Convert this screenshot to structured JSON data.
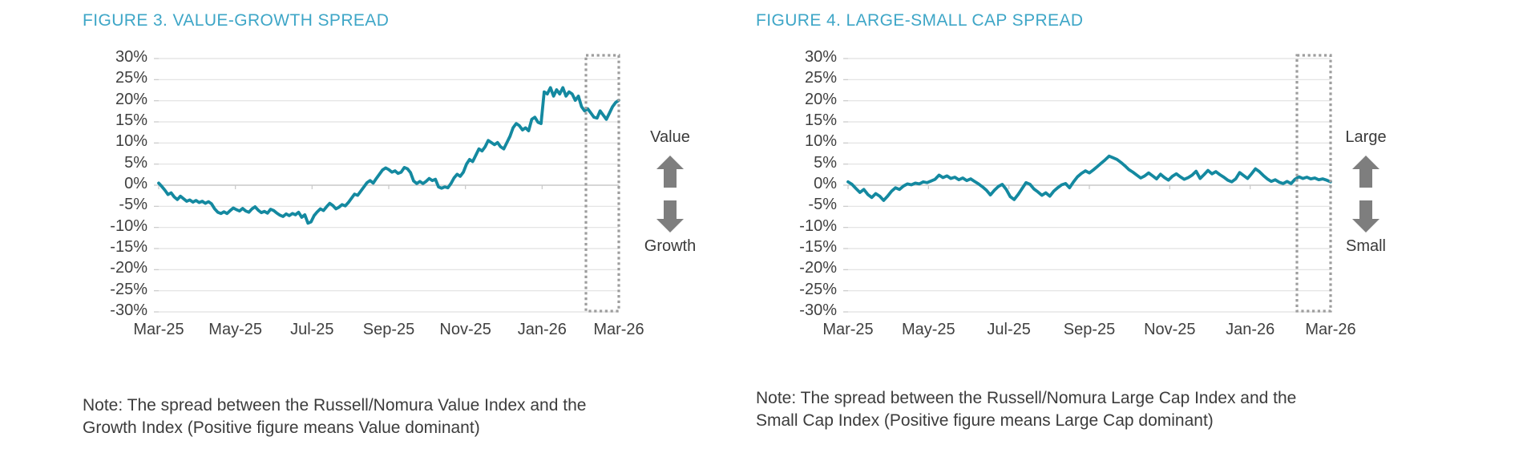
{
  "colors": {
    "title_blue": "#3ea6c7",
    "line_teal": "#1489a0",
    "gridline": "#e1e1e1",
    "zero_axis": "#c9c9c9",
    "axis_text": "#404040",
    "arrow_gray": "#7e7e7e",
    "highlight_box_gray": "#9d9d9d",
    "note_text": "#3c3c3c"
  },
  "figures": [
    {
      "note_line1": "Note: The spread between the Russell/Nomura Value Index and the",
      "note_line2": "Growth Index (Positive figure means Value dominant)",
      "annotation": {
        "top_label": "Value",
        "bottom_label": "Growth",
        "up_arrow_icon": "up-arrow-icon",
        "down_arrow_icon": "down-arrow-icon"
      }
    },
    {
      "note_line1": "Note: The spread between the Russell/Nomura Large Cap Index and the",
      "note_line2": "Small Cap Index (Positive figure means Large Cap dominant)",
      "annotation": {
        "top_label": "Large",
        "bottom_label": "Small",
        "up_arrow_icon": "up-arrow-icon",
        "down_arrow_icon": "down-arrow-icon"
      }
    }
  ],
  "chart_data": [
    {
      "type": "line",
      "title": "FIGURE 3. VALUE-GROWTH SPREAD",
      "x_tick_labels": [
        "Mar-25",
        "May-25",
        "Jul-25",
        "Sep-25",
        "Nov-25",
        "Jan-26",
        "Mar-26"
      ],
      "y_tick_labels": [
        "30%",
        "25%",
        "20%",
        "15%",
        "10%",
        "5%",
        "0%",
        "-5%",
        "-10%",
        "-15%",
        "-20%",
        "-25%",
        "-30%"
      ],
      "ylim": [
        -30,
        30
      ],
      "grid": true,
      "legend": "none",
      "highlight": "dashed gray box over the final month (Feb-26 to Mar-26)",
      "series": [
        {
          "name": "Value minus Growth spread (%)",
          "values": [
            0.5,
            -0.3,
            -1.2,
            -2.2,
            -1.8,
            -2.8,
            -3.4,
            -2.6,
            -3.2,
            -3.8,
            -3.5,
            -4.0,
            -3.6,
            -4.1,
            -3.8,
            -4.3,
            -3.9,
            -4.4,
            -5.6,
            -6.4,
            -6.7,
            -6.3,
            -6.7,
            -6.0,
            -5.4,
            -5.8,
            -6.1,
            -5.5,
            -6.1,
            -6.4,
            -5.6,
            -5.1,
            -5.9,
            -6.5,
            -6.2,
            -6.6,
            -5.7,
            -6.0,
            -6.6,
            -7.1,
            -7.4,
            -6.8,
            -7.2,
            -6.7,
            -7.0,
            -6.4,
            -7.6,
            -7.0,
            -9.0,
            -8.7,
            -7.2,
            -6.3,
            -5.6,
            -6.0,
            -5.1,
            -4.3,
            -4.8,
            -5.6,
            -5.2,
            -4.6,
            -4.9,
            -4.1,
            -3.1,
            -2.1,
            -2.4,
            -1.4,
            -0.4,
            0.6,
            1.1,
            0.5,
            1.6,
            2.6,
            3.6,
            4.1,
            3.7,
            3.1,
            3.4,
            2.8,
            3.1,
            4.2,
            3.9,
            3.0,
            1.0,
            0.4,
            0.9,
            0.4,
            0.9,
            1.6,
            1.1,
            1.4,
            -0.4,
            -0.7,
            -0.4,
            -0.6,
            0.4,
            1.7,
            2.6,
            2.1,
            3.1,
            5.0,
            6.1,
            5.6,
            7.1,
            8.6,
            8.1,
            9.1,
            10.6,
            10.1,
            9.6,
            10.1,
            9.1,
            8.6,
            10.1,
            11.6,
            13.6,
            14.6,
            14.1,
            13.1,
            13.6,
            12.9,
            15.6,
            16.1,
            14.9,
            14.6,
            22.1,
            21.6,
            23.1,
            21.1,
            22.6,
            21.6,
            23.1,
            21.1,
            22.1,
            21.6,
            20.1,
            21.1,
            18.6,
            17.6,
            18.1,
            17.1,
            16.1,
            15.9,
            17.6,
            16.6,
            15.6,
            17.1,
            18.6,
            19.6,
            20.1
          ]
        }
      ]
    },
    {
      "type": "line",
      "title": "FIGURE 4. LARGE-SMALL CAP SPREAD",
      "x_tick_labels": [
        "Mar-25",
        "May-25",
        "Jul-25",
        "Sep-25",
        "Nov-25",
        "Jan-26",
        "Mar-26"
      ],
      "y_tick_labels": [
        "30%",
        "25%",
        "20%",
        "15%",
        "10%",
        "5%",
        "0%",
        "-5%",
        "-10%",
        "-15%",
        "-20%",
        "-25%",
        "-30%"
      ],
      "ylim": [
        -30,
        30
      ],
      "grid": true,
      "legend": "none",
      "highlight": "dashed gray box over the final month (Feb-26 to Mar-26)",
      "series": [
        {
          "name": "Large Cap minus Small Cap spread (%)",
          "values": [
            0.8,
            0.2,
            -0.8,
            -1.7,
            -1.0,
            -2.2,
            -2.9,
            -2.0,
            -2.6,
            -3.6,
            -2.6,
            -1.4,
            -0.6,
            -1.0,
            -0.2,
            0.3,
            0.1,
            0.5,
            0.3,
            0.8,
            0.6,
            1.0,
            1.4,
            2.4,
            1.8,
            2.2,
            1.6,
            1.9,
            1.3,
            1.7,
            1.1,
            1.5,
            0.9,
            0.3,
            -0.4,
            -1.2,
            -2.3,
            -1.2,
            -0.3,
            0.2,
            -1.0,
            -2.7,
            -3.4,
            -2.2,
            -0.8,
            0.6,
            0.2,
            -0.9,
            -1.6,
            -2.4,
            -1.8,
            -2.6,
            -1.4,
            -0.6,
            0.1,
            0.4,
            -0.6,
            0.8,
            2.0,
            2.8,
            3.4,
            2.9,
            3.6,
            4.4,
            5.2,
            6.0,
            6.9,
            6.5,
            6.1,
            5.4,
            4.6,
            3.7,
            3.1,
            2.4,
            1.7,
            2.2,
            2.9,
            2.2,
            1.5,
            2.6,
            1.8,
            1.2,
            2.1,
            2.7,
            2.0,
            1.4,
            1.8,
            2.4,
            3.3,
            1.6,
            2.5,
            3.5,
            2.7,
            3.2,
            2.5,
            1.9,
            1.2,
            0.8,
            1.5,
            3.0,
            2.3,
            1.6,
            2.7,
            3.9,
            3.2,
            2.3,
            1.5,
            0.9,
            1.3,
            0.7,
            0.4,
            0.9,
            0.4,
            1.4,
            2.0,
            1.6,
            1.9,
            1.5,
            1.7,
            1.3,
            1.5,
            1.2,
            0.8
          ]
        }
      ]
    }
  ]
}
